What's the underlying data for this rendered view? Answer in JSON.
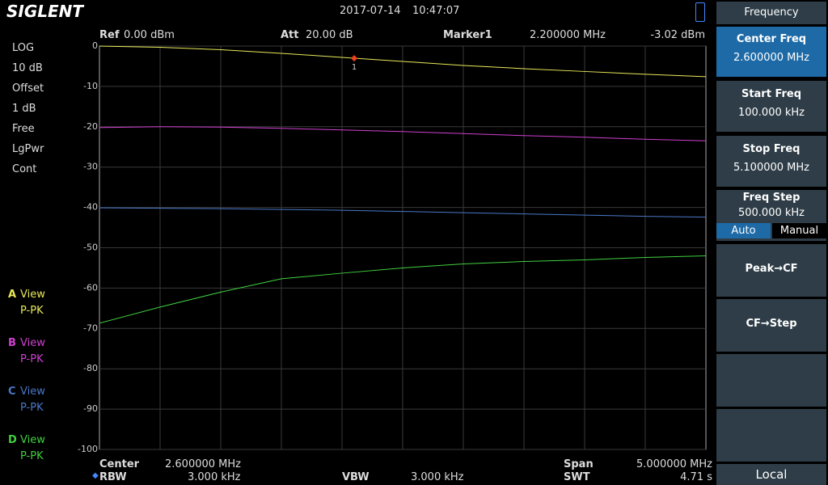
{
  "header": {
    "brand": "SIGLENT",
    "date": "2017-07-14",
    "time": "10:47:07"
  },
  "top_info": {
    "ref_label": "Ref",
    "ref_value": "0.00 dBm",
    "att_label": "Att",
    "att_value": "20.00 dB",
    "marker_label": "Marker1",
    "marker_freq": "2.200000 MHz",
    "marker_level": "-3.02 dBm",
    "marker_number": "1"
  },
  "left_panel": {
    "scale": [
      "LOG",
      "10 dB",
      "Offset",
      "1 dB",
      "Free",
      "LgPwr",
      "Cont"
    ],
    "traces": [
      {
        "letter": "A",
        "view": "View",
        "mode": "P-PK"
      },
      {
        "letter": "B",
        "view": "View",
        "mode": "P-PK"
      },
      {
        "letter": "C",
        "view": "View",
        "mode": "P-PK"
      },
      {
        "letter": "D",
        "view": "View",
        "mode": "P-PK"
      }
    ]
  },
  "bottom_info": {
    "center_label": "Center",
    "center_value": "2.600000 MHz",
    "span_label": "Span",
    "span_value": "5.000000 MHz",
    "rbw_label": "RBW",
    "rbw_value": "3.000 kHz",
    "vbw_label": "VBW",
    "vbw_value": "3.000 kHz",
    "swt_label": "SWT",
    "swt_value": "4.71 s"
  },
  "menu": {
    "title": "Frequency",
    "center_label": "Center Freq",
    "center_value": "2.600000 MHz",
    "start_label": "Start Freq",
    "start_value": "100.000 kHz",
    "stop_label": "Stop Freq",
    "stop_value": "5.100000 MHz",
    "step_label": "Freq Step",
    "step_value": "500.000 kHz",
    "auto": "Auto",
    "manual": "Manual",
    "peak_cf": "Peak→CF",
    "cf_step": "CF→Step",
    "local": "Local"
  },
  "chart_data": {
    "type": "line",
    "xlim": [
      0.1,
      5.1
    ],
    "ylim": [
      -100,
      0
    ],
    "yticks": [
      0,
      -10,
      -20,
      -30,
      -40,
      -50,
      -60,
      -70,
      -80,
      -90,
      -100
    ],
    "grid": true,
    "x": [
      0.1,
      0.6,
      1.1,
      1.6,
      2.1,
      2.6,
      3.1,
      3.6,
      4.1,
      4.6,
      5.1
    ],
    "series": [
      {
        "color": "#e8e85a",
        "values": [
          0,
          -0.3,
          -0.9,
          -1.8,
          -2.8,
          -3.8,
          -4.8,
          -5.6,
          -6.3,
          -7,
          -7.6
        ]
      },
      {
        "color": "#d040d0",
        "values": [
          -20.2,
          -20,
          -20.1,
          -20.4,
          -20.8,
          -21.2,
          -21.7,
          -22.2,
          -22.6,
          -23.1,
          -23.5
        ]
      },
      {
        "color": "#4a78c8",
        "values": [
          -40.1,
          -40.2,
          -40.3,
          -40.5,
          -40.7,
          -41,
          -41.3,
          -41.6,
          -41.9,
          -42.2,
          -42.4
        ]
      },
      {
        "color": "#40d040",
        "values": [
          -68.7,
          -64.7,
          -61,
          -57.7,
          -56.3,
          -55,
          -54,
          -53.4,
          -53,
          -52.4,
          -52
        ]
      }
    ],
    "marker": {
      "x": 2.2,
      "y": -3.02
    }
  }
}
